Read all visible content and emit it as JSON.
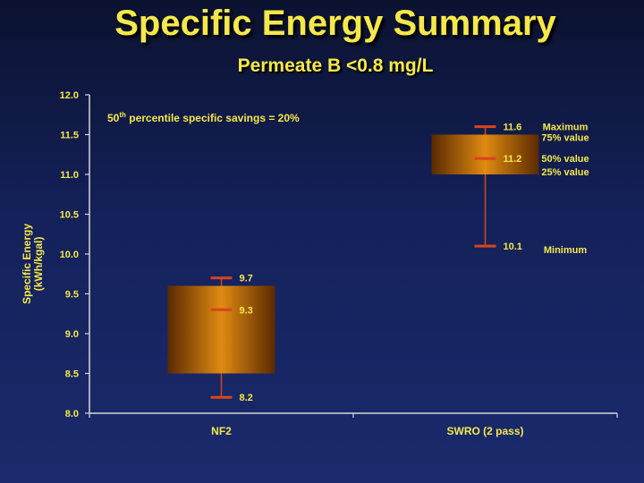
{
  "title": "Specific Energy Summary",
  "subtitle": "Permeate B <0.8 mg/L",
  "colors": {
    "title": "#f5e84a",
    "box_fill": "#e08a12",
    "whisker": "#d9451a",
    "axis": "#d8d8d8",
    "text": "#f5e84a"
  },
  "chart_data": {
    "type": "box",
    "title": "Specific Energy Summary",
    "subtitle": "Permeate B <0.8 mg/L",
    "ylabel_line1": "Specific Energy",
    "ylabel_line2": "(kWh/kgal)",
    "xlabel": "",
    "ylim": [
      8.0,
      12.0
    ],
    "yticks": [
      "8.0",
      "8.5",
      "9.0",
      "9.5",
      "10.0",
      "10.5",
      "11.0",
      "11.5",
      "12.0"
    ],
    "categories": [
      "NF2",
      "SWRO (2 pass)"
    ],
    "series": [
      {
        "category": "NF2",
        "maximum": 9.7,
        "q3": 9.6,
        "median": 9.3,
        "q1": 8.5,
        "minimum": 8.2,
        "labels": {
          "maximum": "9.7",
          "median": "9.3",
          "minimum": "8.2"
        }
      },
      {
        "category": "SWRO (2 pass)",
        "maximum": 11.6,
        "q3": 11.5,
        "median": 11.2,
        "q1": 11.0,
        "minimum": 10.1,
        "labels": {
          "maximum": "11.6",
          "median": "11.2",
          "minimum": "10.1"
        }
      }
    ],
    "annotation": {
      "prefix": "50",
      "superscript": "th",
      "suffix": " percentile specific savings = 20%"
    },
    "legend": {
      "maximum": "Maximum",
      "q3": "75% value",
      "median": "50% value",
      "q1": "25% value",
      "minimum": "Minimum"
    },
    "grid": false
  }
}
